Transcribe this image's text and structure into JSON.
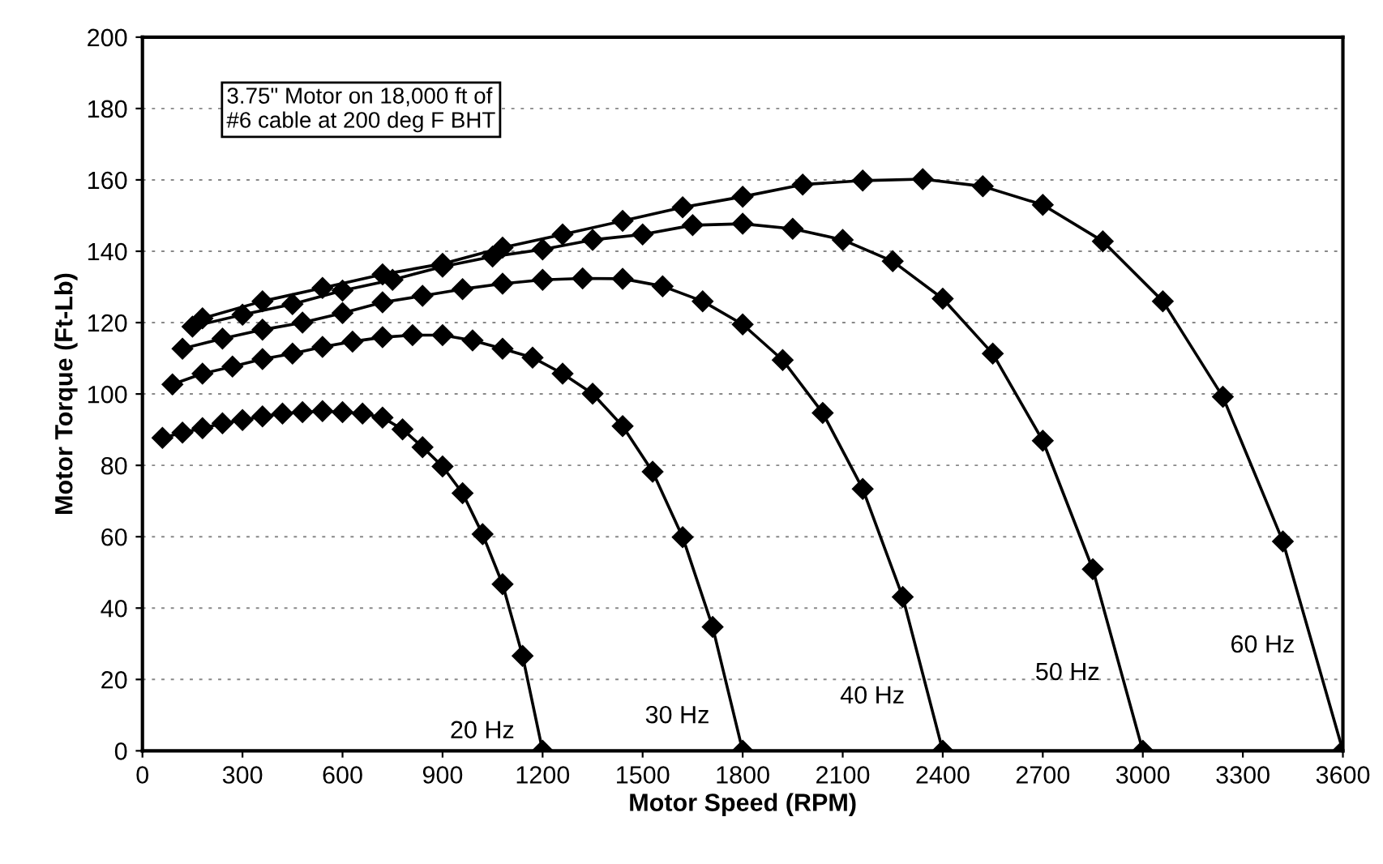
{
  "chart_data": {
    "type": "line",
    "xlabel": "Motor Speed (RPM)",
    "ylabel": "Motor Torque (Ft-Lb)",
    "xlim": [
      0,
      3600
    ],
    "xticks": [
      0,
      300,
      600,
      900,
      1200,
      1500,
      1800,
      2100,
      2400,
      2700,
      3000,
      3300,
      3600
    ],
    "ylim": [
      0,
      200
    ],
    "yticks": [
      0,
      20,
      40,
      60,
      80,
      100,
      120,
      140,
      160,
      180,
      200
    ],
    "grid": "y",
    "marker": "diamond",
    "line_style": "solid",
    "series": [
      {
        "name": "20 Hz",
        "color": "#000000",
        "x": [
          60,
          120,
          180,
          240,
          300,
          360,
          420,
          480,
          540,
          600,
          660,
          720,
          780,
          840,
          900,
          960,
          1020,
          1080,
          1140,
          1200
        ],
        "values": [
          87.7,
          89.2,
          90.4,
          91.8,
          92.7,
          93.7,
          94.5,
          94.9,
          95.2,
          94.9,
          94.5,
          93.4,
          90.1,
          85.1,
          79.7,
          72.2,
          60.7,
          46.7,
          26.6,
          0
        ]
      },
      {
        "name": "30 Hz",
        "color": "#000000",
        "x": [
          90,
          180,
          270,
          360,
          450,
          540,
          630,
          720,
          810,
          900,
          990,
          1080,
          1170,
          1260,
          1350,
          1440,
          1530,
          1620,
          1710,
          1800
        ],
        "values": [
          102.7,
          105.7,
          107.7,
          109.8,
          111.3,
          113.2,
          114.7,
          115.9,
          116.5,
          116.5,
          115,
          112.7,
          110.2,
          105.7,
          100.1,
          91,
          78.2,
          59.9,
          34.7,
          0
        ]
      },
      {
        "name": "40 Hz",
        "color": "#000000",
        "x": [
          120,
          240,
          360,
          480,
          600,
          720,
          840,
          960,
          1080,
          1200,
          1320,
          1440,
          1560,
          1680,
          1800,
          1920,
          2040,
          2160,
          2280,
          2400
        ],
        "values": [
          112.7,
          115.5,
          118,
          120,
          122.7,
          125.7,
          127.5,
          129.4,
          130.9,
          132,
          132.4,
          132.3,
          130.2,
          126,
          119.5,
          109.5,
          94.7,
          73.4,
          43.1,
          0
        ]
      },
      {
        "name": "50 Hz",
        "color": "#000000",
        "x": [
          150,
          300,
          450,
          600,
          750,
          900,
          1050,
          1200,
          1350,
          1500,
          1650,
          1800,
          1950,
          2100,
          2250,
          2400,
          2550,
          2700,
          2850,
          3000
        ],
        "values": [
          118.9,
          122.2,
          125.2,
          129,
          132,
          135.7,
          138.5,
          140.5,
          143.2,
          144.7,
          147.3,
          147.7,
          146.3,
          143.2,
          137.2,
          126.7,
          111.3,
          86.9,
          50.9,
          0
        ]
      },
      {
        "name": "60 Hz",
        "color": "#000000",
        "x": [
          180,
          360,
          540,
          720,
          900,
          1080,
          1260,
          1440,
          1620,
          1800,
          1980,
          2160,
          2340,
          2520,
          2700,
          2880,
          3060,
          3240,
          3420,
          3600
        ],
        "values": [
          121.2,
          126,
          129.7,
          133.5,
          136.5,
          141,
          144.7,
          148.5,
          152.3,
          155.3,
          158.7,
          159.8,
          160.2,
          158.2,
          153,
          142.8,
          126,
          99.2,
          58.7,
          0
        ]
      }
    ],
    "annotations": [
      "3.75\" Motor on 18,000 ft of\n#6 cable at 200 deg F BHT"
    ]
  }
}
